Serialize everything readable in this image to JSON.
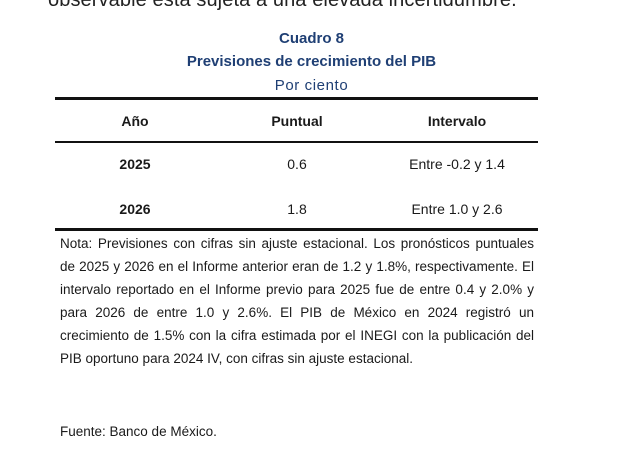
{
  "context_line": "observable está sujeta a una elevada incertidumbre.",
  "caption": {
    "number": "Cuadro 8",
    "title": "Previsiones de crecimiento del PIB",
    "unit": "Por ciento"
  },
  "table": {
    "headers": [
      "Año",
      "Puntual",
      "Intervalo"
    ],
    "rows": [
      [
        "2025",
        "0.6",
        "Entre -0.2 y 1.4"
      ],
      [
        "2026",
        "1.8",
        "Entre 1.0 y 2.6"
      ]
    ]
  },
  "note": "Nota: Previsiones con cifras sin ajuste estacional. Los pronósticos puntuales de 2025 y 2026 en el Informe anterior eran de 1.2 y 1.8%, respectivamente. El intervalo reportado en el Informe previo para 2025 fue de entre 0.4 y 2.0% y para 2026 de entre 1.0 y 2.6%. El PIB de México en 2024 registró un crecimiento de 1.5% con la cifra estimada por el INEGI con la publicación del PIB oportuno para 2024 IV, con cifras sin ajuste estacional.",
  "source": "Fuente: Banco de México."
}
